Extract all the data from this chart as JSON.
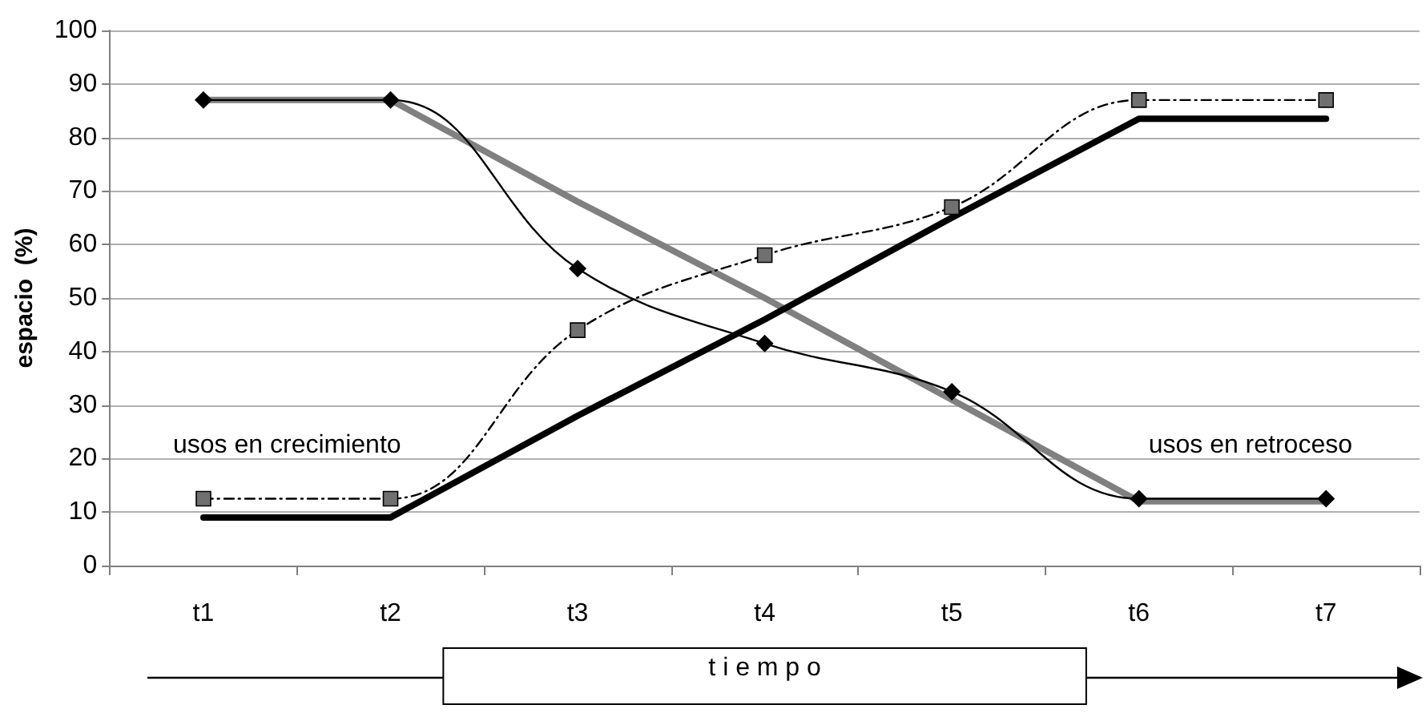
{
  "chart_data": {
    "type": "line",
    "ylabel": "espacio  (%)",
    "xlabel": "t i e m p o",
    "categories": [
      "t1",
      "t2",
      "t3",
      "t4",
      "t5",
      "t6",
      "t7"
    ],
    "series": [
      {
        "color": "#808080",
        "values": [
          87,
          87,
          68,
          50,
          31,
          12,
          12
        ],
        "marker": "none",
        "line_style": "solid"
      },
      {
        "color": "#000000",
        "values": [
          9,
          9,
          28,
          46,
          65,
          83.5,
          83.5
        ],
        "marker": "none",
        "line_style": "solid"
      },
      {
        "color": "#000000",
        "values": [
          87,
          87,
          55.5,
          41.5,
          32.5,
          12.5,
          12.5
        ],
        "marker": "diamond",
        "line_style": "solid"
      },
      {
        "color": "#000000",
        "values": [
          12.5,
          12.5,
          44,
          58,
          67,
          87,
          87
        ],
        "marker": "square",
        "line_style": "dashed"
      }
    ],
    "annotations": [
      "usos en crecimiento",
      "usos en retroceso"
    ],
    "ylim": [
      0,
      100
    ],
    "yticks": [
      0,
      10,
      20,
      30,
      40,
      50,
      60,
      70,
      80,
      90,
      100
    ],
    "grid": "y"
  }
}
